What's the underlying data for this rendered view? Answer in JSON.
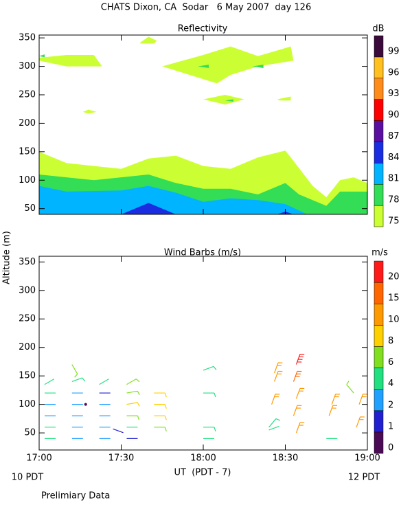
{
  "title": "CHATS Dixon, CA  Sodar   6 May 2007  day 126",
  "xlabel": "UT  (PDT - 7)",
  "footer": {
    "left": "10 PDT",
    "right": "12 PDT",
    "note": "Prelimiary Data"
  },
  "chart_data": [
    {
      "type": "contour",
      "title": "Reflectivity",
      "xlim": [
        1020,
        1140
      ],
      "xticks": [
        {
          "value": 1020,
          "label": "17:00"
        },
        {
          "value": 1050,
          "label": "17:30"
        },
        {
          "value": 1080,
          "label": "18:00"
        },
        {
          "value": 1110,
          "label": "18:30"
        },
        {
          "value": 1140,
          "label": "19:00"
        }
      ],
      "ylim": [
        40,
        355
      ],
      "yticks": [
        50,
        100,
        150,
        200,
        250,
        300,
        350
      ],
      "colorbar": {
        "unit": "dB",
        "levels": [
          75,
          78,
          81,
          84,
          87,
          90,
          93,
          96,
          99
        ],
        "colors": [
          "#ccff33",
          "#33dd55",
          "#00b4ff",
          "#1a2de0",
          "#5a0fa0",
          "#ff0000",
          "#ff8c1a",
          "#ffc020",
          "#3a0a3a"
        ]
      },
      "bands": [
        {
          "level": 75,
          "x": [
            1020,
            1030,
            1050,
            1060,
            1070,
            1080,
            1090,
            1100,
            1110,
            1112,
            1120,
            1125,
            1130,
            1135,
            1140,
            1140,
            1020
          ],
          "y": [
            150,
            130,
            120,
            138,
            143,
            125,
            120,
            140,
            152,
            140,
            90,
            70,
            100,
            105,
            95,
            40,
            40
          ]
        },
        {
          "level": 78,
          "x": [
            1020,
            1030,
            1040,
            1060,
            1070,
            1080,
            1090,
            1100,
            1110,
            1115,
            1125,
            1130,
            1140,
            1140,
            1020
          ],
          "y": [
            110,
            105,
            100,
            110,
            95,
            85,
            85,
            75,
            95,
            75,
            55,
            80,
            80,
            40,
            40
          ]
        },
        {
          "level": 81,
          "x": [
            1020,
            1030,
            1050,
            1060,
            1070,
            1080,
            1090,
            1100,
            1110,
            1118,
            1020
          ],
          "y": [
            90,
            80,
            82,
            90,
            78,
            62,
            68,
            65,
            58,
            40,
            40
          ]
        },
        {
          "level": 84,
          "x": [
            1050,
            1060,
            1070
          ],
          "y": [
            40,
            60,
            40
          ]
        },
        {
          "level": 84,
          "x": [
            1107,
            1110,
            1113
          ],
          "y": [
            40,
            45,
            40
          ]
        },
        {
          "level": 75,
          "x": [
            1020,
            1030,
            1040,
            1043,
            1030,
            1020
          ],
          "y": [
            315,
            320,
            320,
            300,
            300,
            310
          ]
        },
        {
          "level": 75,
          "x": [
            1057,
            1060,
            1063,
            1062,
            1057
          ],
          "y": [
            342,
            352,
            345,
            340,
            340
          ]
        },
        {
          "level": 75,
          "x": [
            1065,
            1080,
            1090,
            1100,
            1112,
            1113,
            1100,
            1090,
            1085,
            1075
          ],
          "y": [
            300,
            320,
            335,
            318,
            335,
            310,
            300,
            285,
            270,
            285
          ]
        },
        {
          "level": 75,
          "x": [
            1080,
            1088,
            1095,
            1088
          ],
          "y": [
            242,
            250,
            242,
            233
          ]
        },
        {
          "level": 75,
          "x": [
            1107,
            1112,
            1112,
            1108
          ],
          "y": [
            242,
            247,
            240,
            240
          ]
        },
        {
          "level": 75,
          "x": [
            1036,
            1038,
            1041,
            1038
          ],
          "y": [
            220,
            224,
            220,
            217
          ]
        },
        {
          "level": 78,
          "x": [
            1020,
            1022,
            1022
          ],
          "y": [
            318,
            321,
            316
          ]
        },
        {
          "level": 78,
          "x": [
            1078,
            1082,
            1082
          ],
          "y": [
            300,
            303,
            297
          ]
        },
        {
          "level": 78,
          "x": [
            1088,
            1091,
            1091
          ],
          "y": [
            240,
            242,
            238
          ]
        },
        {
          "level": 78,
          "x": [
            1098,
            1102,
            1102
          ],
          "y": [
            300,
            303,
            297
          ]
        }
      ]
    },
    {
      "type": "barbs",
      "title": "Wind Barbs (m/s)",
      "ylabel": "Altitude (m)",
      "xlim": [
        1020,
        1140
      ],
      "xticks": [
        {
          "value": 1020,
          "label": "17:00"
        },
        {
          "value": 1050,
          "label": "17:30"
        },
        {
          "value": 1080,
          "label": "18:00"
        },
        {
          "value": 1110,
          "label": "18:30"
        },
        {
          "value": 1140,
          "label": "19:00"
        }
      ],
      "ylim": [
        20,
        360
      ],
      "yticks": [
        50,
        100,
        150,
        200,
        250,
        300,
        350
      ],
      "colorbar": {
        "unit": "m/s",
        "levels": [
          0,
          1,
          2,
          4,
          6,
          8,
          10,
          15,
          20
        ],
        "colors": [
          "#4b0a55",
          "#2020d0",
          "#20a0ff",
          "#20e080",
          "#80e020",
          "#ffd000",
          "#ff9900",
          "#ff6600",
          "#ff1a1a"
        ]
      },
      "x": [
        1022,
        1022,
        1022,
        1022,
        1022,
        1022,
        1032,
        1032,
        1032,
        1032,
        1032,
        1032,
        1032,
        1037,
        1042,
        1042,
        1042,
        1042,
        1042,
        1042,
        1047,
        1052,
        1052,
        1052,
        1052,
        1052,
        1052,
        1062,
        1062,
        1062,
        1062,
        1080,
        1080,
        1080,
        1080,
        1104,
        1104,
        1105,
        1106,
        1106,
        1114,
        1113,
        1114,
        1113,
        1114,
        1125,
        1126,
        1127,
        1136,
        1137,
        1135
      ],
      "y": [
        40,
        60,
        80,
        100,
        120,
        135,
        40,
        60,
        80,
        100,
        120,
        140,
        170,
        100,
        40,
        60,
        80,
        100,
        120,
        135,
        57,
        40,
        60,
        80,
        100,
        120,
        135,
        60,
        80,
        100,
        120,
        40,
        60,
        120,
        160,
        55,
        60,
        100,
        140,
        155,
        50,
        80,
        110,
        140,
        170,
        40,
        80,
        100,
        60,
        100,
        120
      ],
      "speed": [
        4,
        4,
        2,
        2,
        4,
        4,
        2,
        2,
        2,
        2,
        2,
        5,
        7,
        0,
        2,
        2,
        2,
        2,
        1,
        4,
        1,
        1,
        4,
        6,
        8,
        6,
        6,
        6,
        9,
        9,
        9,
        4,
        5,
        5,
        5,
        4,
        5,
        11,
        11,
        11,
        11,
        12,
        12,
        15,
        20,
        4,
        11,
        11,
        11,
        11,
        6
      ],
      "direction": [
        270,
        270,
        270,
        270,
        270,
        240,
        270,
        270,
        270,
        270,
        270,
        250,
        330,
        0,
        270,
        270,
        270,
        270,
        270,
        240,
        290,
        270,
        270,
        270,
        260,
        260,
        240,
        270,
        270,
        270,
        270,
        270,
        270,
        270,
        250,
        250,
        220,
        200,
        200,
        200,
        200,
        200,
        200,
        200,
        200,
        270,
        200,
        200,
        200,
        200,
        140
      ]
    }
  ]
}
